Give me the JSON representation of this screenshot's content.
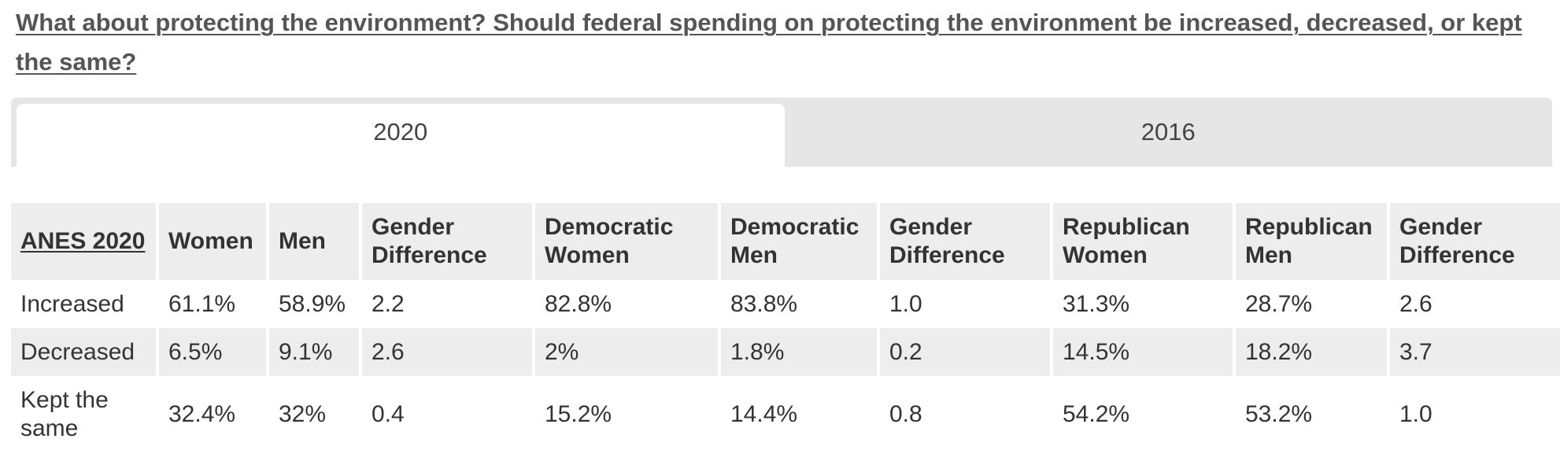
{
  "question": "What about protecting the environment? Should federal spending on protecting the environment be increased, decreased, or kept the same?",
  "tabs": [
    {
      "label": "2020",
      "active": true
    },
    {
      "label": "2016",
      "active": false
    }
  ],
  "table": {
    "headers": [
      "ANES 2020",
      "Women",
      "Men",
      "Gender Difference",
      "Democratic Women",
      "Democratic Men",
      "Gender Difference",
      "Republican Women",
      "Republican Men",
      "Gender Difference"
    ],
    "rows": [
      {
        "label": "Increased",
        "values": [
          "61.1%",
          "58.9%",
          "2.2",
          "82.8%",
          "83.8%",
          "1.0",
          "31.3%",
          "28.7%",
          "2.6"
        ]
      },
      {
        "label": "Decreased",
        "values": [
          "6.5%",
          "9.1%",
          "2.6",
          "2%",
          "1.8%",
          "0.2",
          "14.5%",
          "18.2%",
          "3.7"
        ]
      },
      {
        "label": "Kept the same",
        "values": [
          "32.4%",
          "32%",
          "0.4",
          "15.2%",
          "14.4%",
          "0.8",
          "54.2%",
          "53.2%",
          "1.0"
        ]
      }
    ]
  }
}
